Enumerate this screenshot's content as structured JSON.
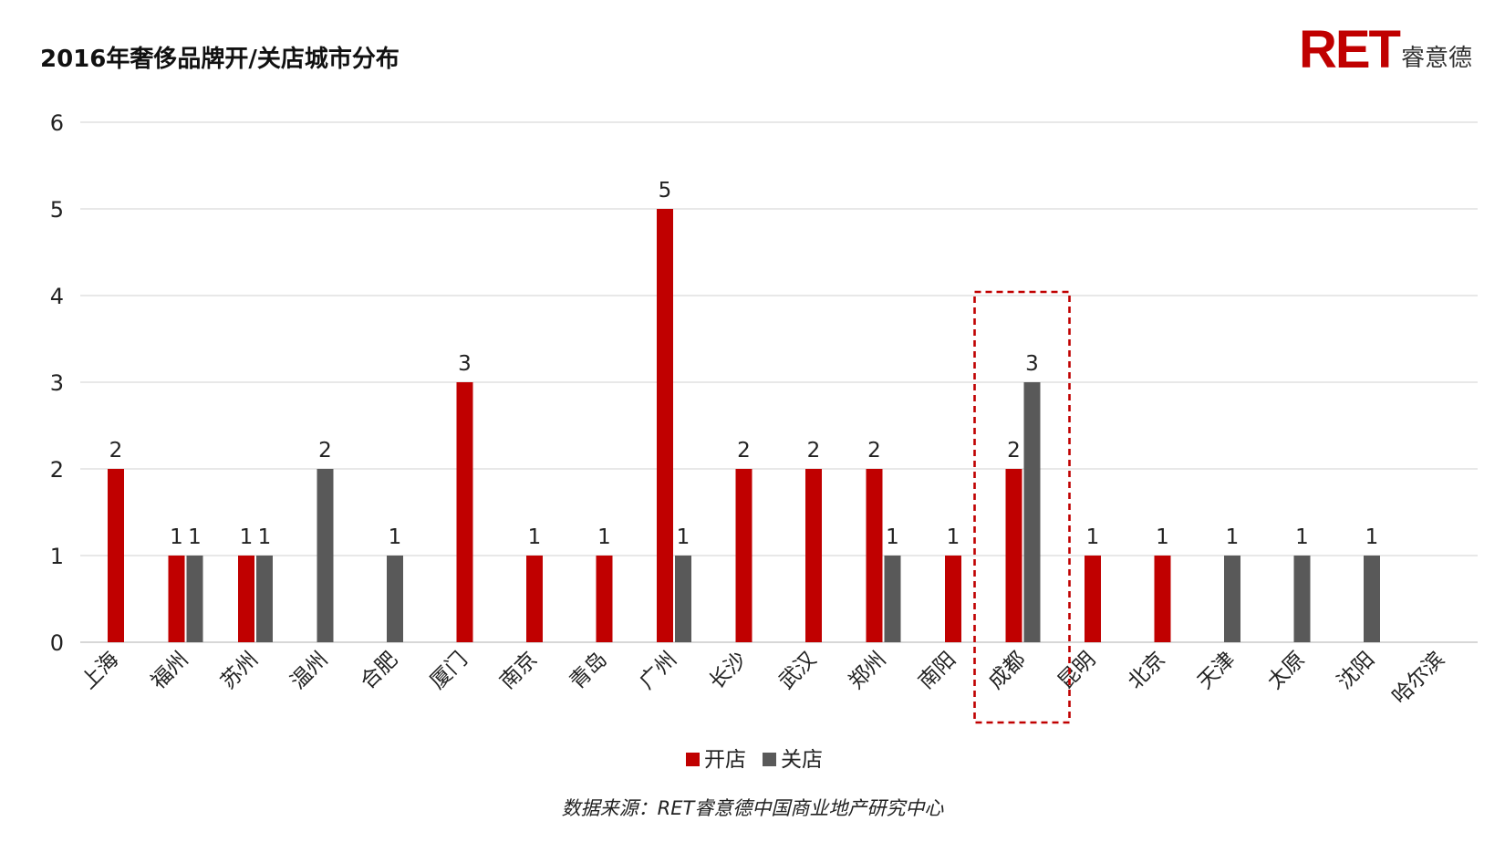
{
  "title": "2016年奢侈品牌开/关店城市分布",
  "logo": {
    "brand": "RET",
    "name": "睿意德"
  },
  "source": "数据来源：RET睿意德中国商业地产研究中心",
  "colors": {
    "open": "#c00000",
    "close": "#595959",
    "grid": "#d9d9d9",
    "highlight": "#c00000"
  },
  "chart_data": {
    "type": "bar",
    "categories": [
      "上海",
      "福州",
      "苏州",
      "温州",
      "合肥",
      "厦门",
      "南京",
      "青岛",
      "广州",
      "长沙",
      "武汉",
      "郑州",
      "南阳",
      "成都",
      "昆明",
      "北京",
      "天津",
      "太原",
      "沈阳",
      "哈尔滨"
    ],
    "series": [
      {
        "name": "开店",
        "values": [
          2,
          1,
          1,
          0,
          0,
          3,
          1,
          1,
          5,
          2,
          2,
          2,
          1,
          2,
          1,
          1,
          0,
          0,
          0,
          0
        ]
      },
      {
        "name": "关店",
        "values": [
          0,
          1,
          1,
          2,
          1,
          0,
          0,
          0,
          1,
          0,
          0,
          1,
          0,
          3,
          0,
          0,
          1,
          1,
          1,
          0
        ]
      }
    ],
    "ylim": [
      0,
      6
    ],
    "yticks": [
      0,
      1,
      2,
      3,
      4,
      5,
      6
    ],
    "grid": true,
    "legend": "bottom",
    "highlight_category": "成都"
  }
}
